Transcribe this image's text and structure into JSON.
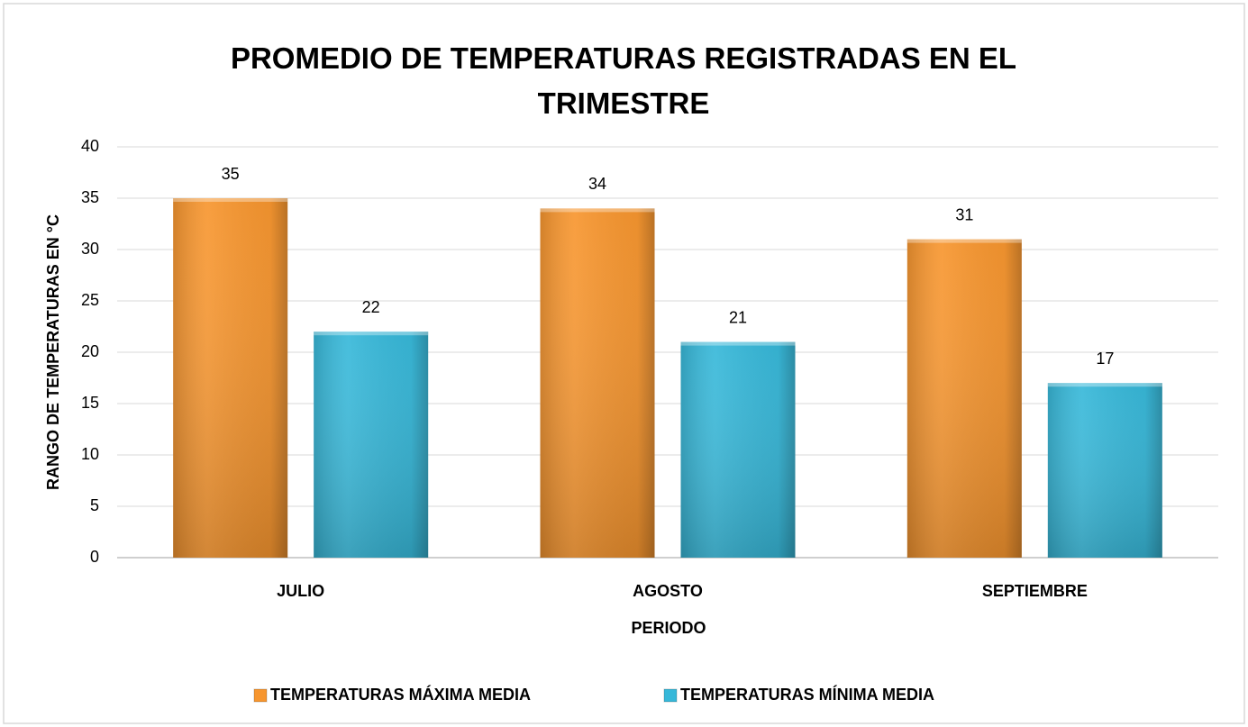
{
  "chart_data": {
    "type": "bar",
    "title": "PROMEDIO DE TEMPERATURAS REGISTRADAS EN EL TRIMESTRE",
    "x_label": "PERIODO",
    "y_label": "RANGO DE TEMPERATURAS EN  °C",
    "categories": [
      "JULIO",
      "AGOSTO",
      "SEPTIEMBRE"
    ],
    "series": [
      {
        "name": "TEMPERATURAS MÁXIMA MEDIA",
        "color": "#f7962f",
        "values": [
          35,
          34,
          31
        ]
      },
      {
        "name": "TEMPERATURAS MÍNIMA MEDIA",
        "color": "#37b8d9",
        "values": [
          22,
          21,
          17
        ]
      }
    ],
    "ylim": [
      0,
      40
    ],
    "yticks": [
      0,
      5,
      10,
      15,
      20,
      25,
      30,
      35,
      40
    ],
    "grid": true,
    "legend": "bottom"
  }
}
